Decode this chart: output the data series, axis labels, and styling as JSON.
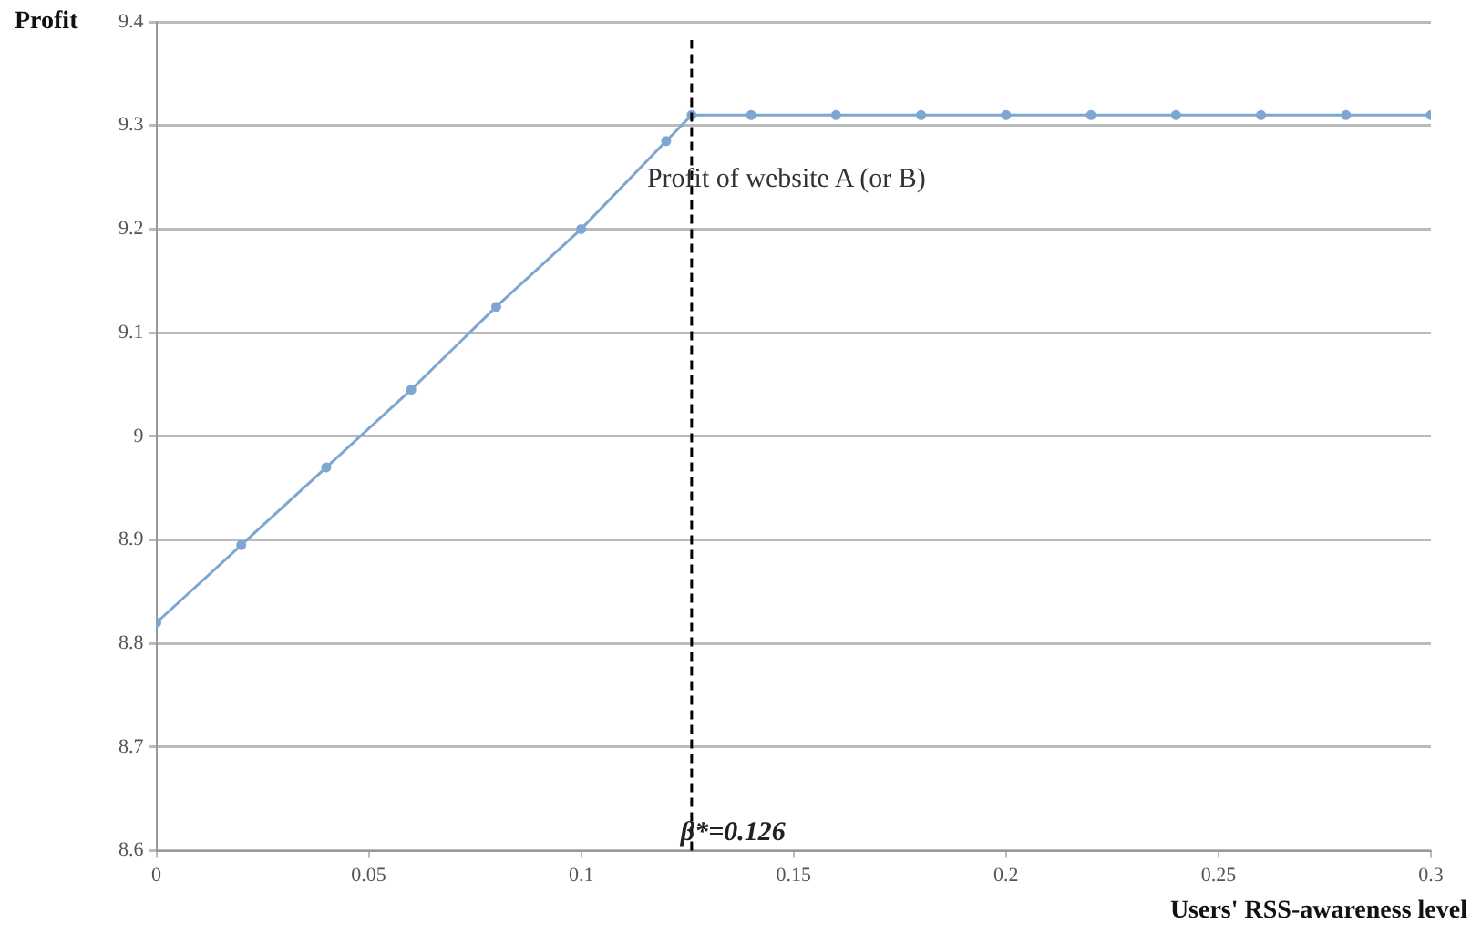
{
  "chart_data": {
    "type": "line",
    "xlabel": "Users' RSS-awareness level",
    "ylabel": "Profit",
    "x": [
      0,
      0.02,
      0.04,
      0.06,
      0.08,
      0.1,
      0.12,
      0.126,
      0.14,
      0.16,
      0.18,
      0.2,
      0.22,
      0.24,
      0.26,
      0.28,
      0.3
    ],
    "series": [
      {
        "color": "#7ea6d3",
        "values": [
          8.82,
          8.895,
          8.97,
          9.045,
          9.125,
          9.2,
          9.285,
          9.31,
          9.31,
          9.31,
          9.31,
          9.31,
          9.31,
          9.31,
          9.31,
          9.31,
          9.31
        ]
      }
    ],
    "xlim": [
      0,
      0.3
    ],
    "xticks": [
      0,
      0.05,
      0.1,
      0.15,
      0.2,
      0.25,
      0.3
    ],
    "ylim": [
      8.6,
      9.4
    ],
    "yticks": [
      8.6,
      8.7,
      8.8,
      8.9,
      9,
      9.1,
      9.2,
      9.3,
      9.4
    ],
    "ref_lines": [
      {
        "axis": "x",
        "value": 0.126,
        "label": "β*=0.126",
        "line_style": "dashed",
        "color": "#000000"
      }
    ],
    "annotations": [
      "Profit of website A (or B)"
    ],
    "grid": "y",
    "legend": false,
    "marker": "circle",
    "line_style": "solid"
  }
}
